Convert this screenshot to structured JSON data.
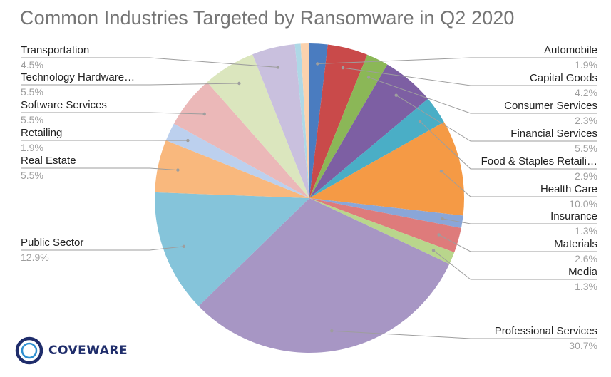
{
  "chart_data": {
    "type": "pie",
    "title": "Common Industries Targeted by Ransomware in Q2 2020",
    "slices": [
      {
        "label": "Automobile",
        "value": 1.9,
        "color": "#4a7cc0"
      },
      {
        "label": "Capital Goods",
        "value": 4.2,
        "color": "#c94a4a"
      },
      {
        "label": "Consumer Services",
        "value": 2.3,
        "color": "#8bb757"
      },
      {
        "label": "Financial Services",
        "value": 5.5,
        "color": "#7d5fa3"
      },
      {
        "label": "Food & Staples Retaili…",
        "value": 2.9,
        "color": "#4aaec6"
      },
      {
        "label": "Health Care",
        "value": 10.0,
        "color": "#f59a45"
      },
      {
        "label": "Insurance",
        "value": 1.3,
        "color": "#8aa6d8"
      },
      {
        "label": "Materials",
        "value": 2.6,
        "color": "#de7b7b"
      },
      {
        "label": "Media",
        "value": 1.3,
        "color": "#b9d68c"
      },
      {
        "label": "Professional Services",
        "value": 30.7,
        "color": "#a796c4"
      },
      {
        "label": "Public Sector",
        "value": 12.9,
        "color": "#85c4da"
      },
      {
        "label": "Real Estate",
        "value": 5.5,
        "color": "#f9b87d"
      },
      {
        "label": "Retailing",
        "value": 1.9,
        "color": "#bcd0ee"
      },
      {
        "label": "Software Services",
        "value": 5.5,
        "color": "#ebb8b8"
      },
      {
        "label": "Technology Hardware…",
        "value": 5.5,
        "color": "#dbe6be"
      },
      {
        "label": "Transportation",
        "value": 4.5,
        "color": "#c9c0de"
      },
      {
        "label": "",
        "value": 0.6,
        "color": "#aed8e6"
      },
      {
        "label": "",
        "value": 0.9,
        "color": "#fbd2ae"
      }
    ],
    "value_suffix": "%",
    "legend": "callout-labels"
  },
  "brand": {
    "name": "COVEWARE",
    "colors": {
      "ring_outer": "#1f2d6b",
      "ring_inner": "#2f8fd0"
    }
  }
}
